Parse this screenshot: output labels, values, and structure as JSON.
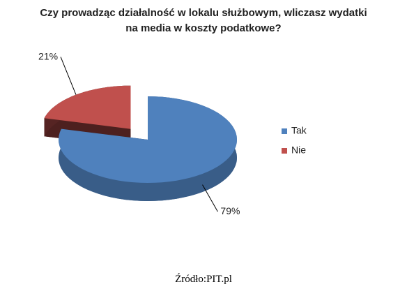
{
  "chart_data": {
    "type": "pie",
    "title": "Czy prowadząc działalność w lokalu służbowym, wliczasz wydatki na media w koszty podatkowe?",
    "categories": [
      "Tak",
      "Nie"
    ],
    "values": [
      79,
      21
    ],
    "value_labels": [
      "79%",
      "21%"
    ],
    "colors": [
      "#4f81bd",
      "#c0504d"
    ],
    "legend": "right",
    "source": "Źródło:PIT.pl"
  }
}
